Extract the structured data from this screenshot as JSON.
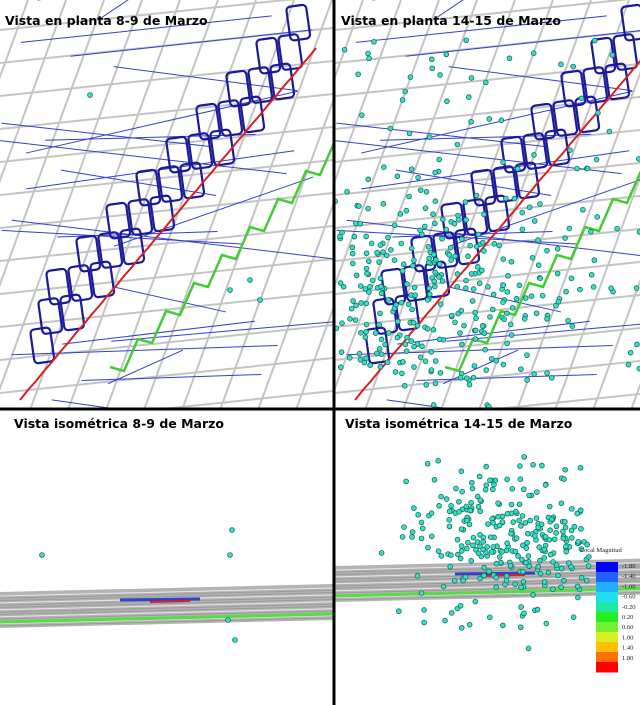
{
  "panels": [
    {
      "title": "Vista en planta 8-9 de Marzo"
    },
    {
      "title": "Vista en planta 14-15 de Marzo"
    },
    {
      "title": "Vista isométrica 8-9 de Marzo"
    },
    {
      "title": "Vista isométrica 14-15 de Marzo"
    }
  ],
  "legend": {
    "title": "Local Magnitud",
    "labels": [
      "-1.80",
      "-1.40",
      "-1.00",
      "-0.60",
      "-0.20",
      "0.20",
      "0.60",
      "1.00",
      "1.40",
      "1.80"
    ]
  }
}
